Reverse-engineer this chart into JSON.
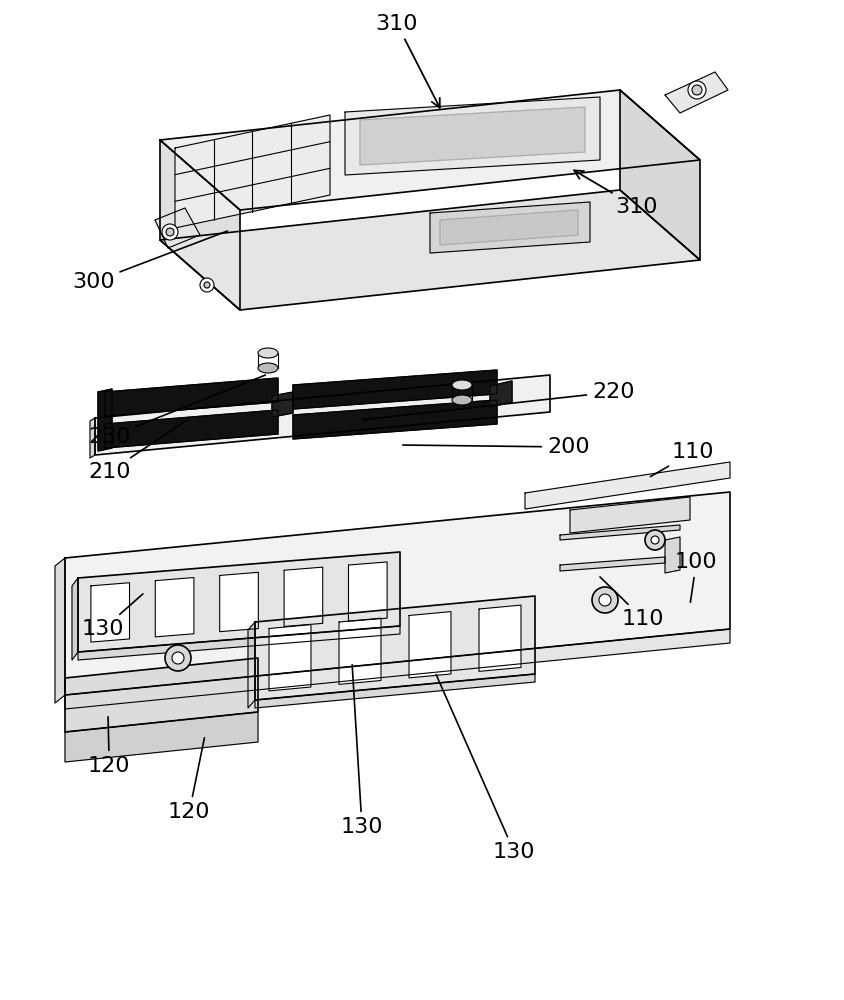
{
  "bg_color": "#ffffff",
  "line_color": "#000000",
  "dark_color": "#1a1a1a",
  "gray_color": "#888888",
  "light_gray": "#cccccc",
  "label_fontsize": 16
}
